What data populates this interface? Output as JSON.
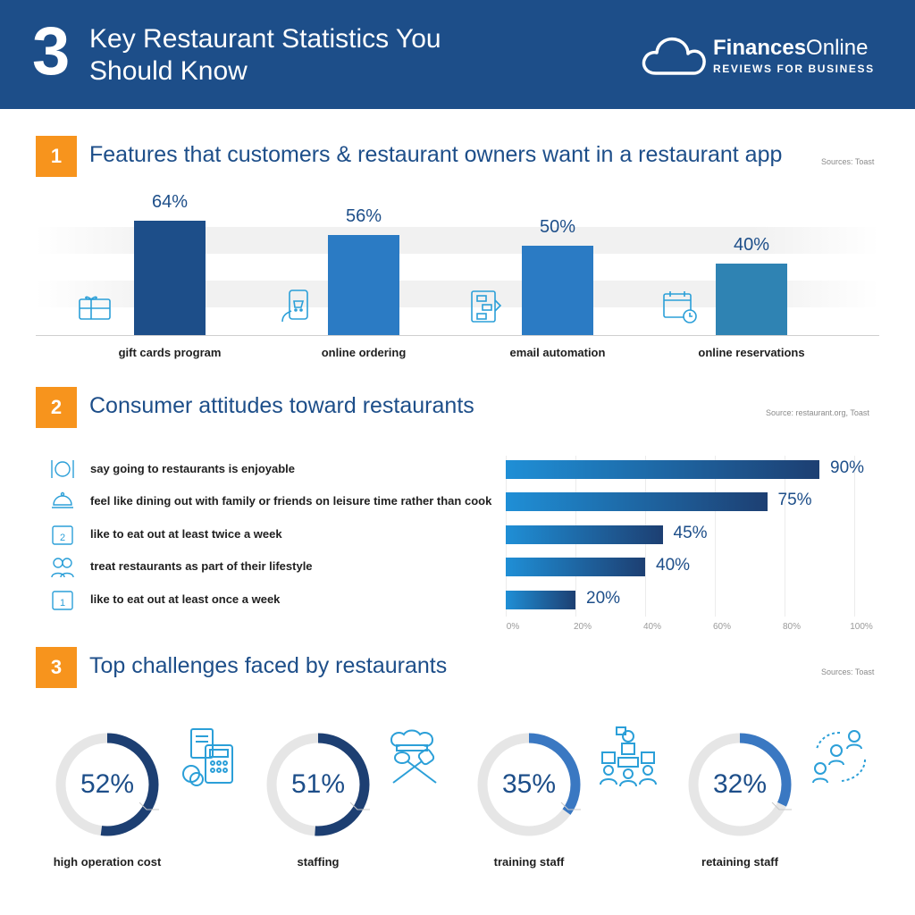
{
  "header": {
    "number": "3",
    "title": "Key Restaurant Statistics You Should Know",
    "logo_name_bold": "Finances",
    "logo_name_rest": "Online",
    "logo_tagline": "REVIEWS FOR BUSINESS"
  },
  "colors": {
    "header_bg": "#1d4e89",
    "accent_orange": "#f7941d",
    "bar_blue": "#2b7bc4",
    "donut_track": "#e6e6e6",
    "donut_dark": "#1d3f72",
    "donut_light": "#3a78c2"
  },
  "sections": [
    {
      "number": "1",
      "title": "Features that customers & restaurant owners want in a restaurant app",
      "source": "Sources: Toast"
    },
    {
      "number": "2",
      "title": "Consumer attitudes toward restaurants",
      "source": "Source: restaurant.org, Toast"
    },
    {
      "number": "3",
      "title": "Top challenges faced by restaurants",
      "source": "Sources: Toast"
    }
  ],
  "chart_data": [
    {
      "type": "bar",
      "orientation": "vertical",
      "categories": [
        "gift cards program",
        "online ordering",
        "email automation",
        "online reservations"
      ],
      "values": [
        64,
        56,
        50,
        40
      ],
      "value_labels": [
        "64%",
        "56%",
        "50%",
        "40%"
      ],
      "icons": [
        "gift-card-icon",
        "mobile-order-icon",
        "workflow-icon",
        "calendar-clock-icon"
      ],
      "ylim": [
        0,
        100
      ]
    },
    {
      "type": "bar",
      "orientation": "horizontal",
      "categories": [
        "say going to restaurants is enjoyable",
        "feel like dining out with family or friends on leisure time rather than cook",
        "like to eat out at least twice a week",
        "treat restaurants as part of their lifestyle",
        "like to eat out at least once a week"
      ],
      "values": [
        90,
        75,
        45,
        40,
        20
      ],
      "value_labels": [
        "90%",
        "75%",
        "45%",
        "40%",
        "20%"
      ],
      "icons": [
        "plate-cutlery-icon",
        "dining-cloche-icon",
        "calendar-2-icon",
        "couple-icon",
        "calendar-1-icon"
      ],
      "xlim": [
        0,
        100
      ],
      "xticks": [
        "0%",
        "20%",
        "40%",
        "60%",
        "80%",
        "100%"
      ],
      "grid": true
    },
    {
      "type": "pie",
      "style": "donut",
      "categories": [
        "high operation cost",
        "staffing",
        "training staff",
        "retaining staff"
      ],
      "values": [
        52,
        51,
        35,
        32
      ],
      "value_labels": [
        "52%",
        "51%",
        "35%",
        "32%"
      ],
      "icons": [
        "cost-calculator-icon",
        "chef-tools-icon",
        "training-icon",
        "staff-cycle-icon"
      ]
    }
  ]
}
